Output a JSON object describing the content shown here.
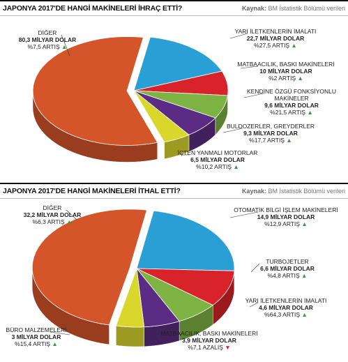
{
  "chart_data": [
    {
      "type": "pie",
      "title": "JAPONYA 2017'DE HANGİ MAKİNELERİ İHRAÇ ETTİ?",
      "source_label": "Kaynak:",
      "source": "BM İstatistik Bölümü verileri",
      "categories": [
        "DİĞER",
        "YARI İLETKENLERİN İMALATI",
        "MATBAACILIK, BASKI MAKİNELERİ",
        "KENDİNE ÖZGÜ FONKSİYONLU MAKİNELER",
        "BULDOZERLER, GREYDERLER",
        "İÇTEN YANMALI MOTORLAR"
      ],
      "values": [
        80.3,
        22.7,
        10,
        9.6,
        9.3,
        6.5
      ],
      "value_labels": [
        "80,3 MİLYAR DOLAR",
        "22,7 MİLYAR DOLAR",
        "10 MİLYAR DOLAR",
        "9,6 MİLYAR DOLAR",
        "9,3 MİLYAR DOLAR",
        "6,5 MİLYAR DOLAR"
      ],
      "changes": [
        "%7,5 ARTIŞ",
        "%27,5 ARTIŞ",
        "%2 ARTIŞ",
        "%21,5 ARTIŞ",
        "%17,7 ARTIŞ",
        "%10,2 ARTIŞ"
      ],
      "arrows": [
        "▲",
        "▲",
        "▲",
        "▲",
        "▲",
        "▲"
      ],
      "colors": [
        "#d4552a",
        "#2a9fd6",
        "#d8232a",
        "#7cb342",
        "#5b2c83",
        "#d9d62c"
      ]
    },
    {
      "type": "pie",
      "title": "JAPONYA 2017'DE HANGİ MAKİNELERİ İTHAL ETTİ?",
      "source_label": "Kaynak:",
      "source": "BM İstatistik Bölümü verileri",
      "categories": [
        "DİĞER",
        "OTOMATİK BİLGİ İŞLEM MAKİNELERİ",
        "TURBOJETLER",
        "YARI İLETKENLERİN İMALATI",
        "MATBAACILIK, BASKI MAKİNELERİ",
        "BÜRO MALZEMELERİ"
      ],
      "values": [
        32.2,
        14.9,
        6.6,
        4.6,
        3.9,
        3
      ],
      "value_labels": [
        "32,2 MİLYAR DOLAR",
        "14,9 MİLYAR DOLAR",
        "6,6 MİLYAR DOLAR",
        "4,6 MİLYAR DOLAR",
        "3,9 MİLYAR DOLAR",
        "3 MİLYAR DOLAR"
      ],
      "changes": [
        "%6,3 ARTIŞ",
        "%12,9 ARTIŞ",
        "%4,8 ARTIŞ",
        "%64,3 ARTIŞ",
        "%7,1 AZALIŞ",
        "%15,4 ARTIŞ"
      ],
      "arrows": [
        "▲",
        "▲",
        "▲",
        "▲",
        "▼",
        "▲"
      ],
      "colors": [
        "#d4552a",
        "#2a9fd6",
        "#d8232a",
        "#7cb342",
        "#5b2c83",
        "#d9d62c"
      ]
    }
  ]
}
